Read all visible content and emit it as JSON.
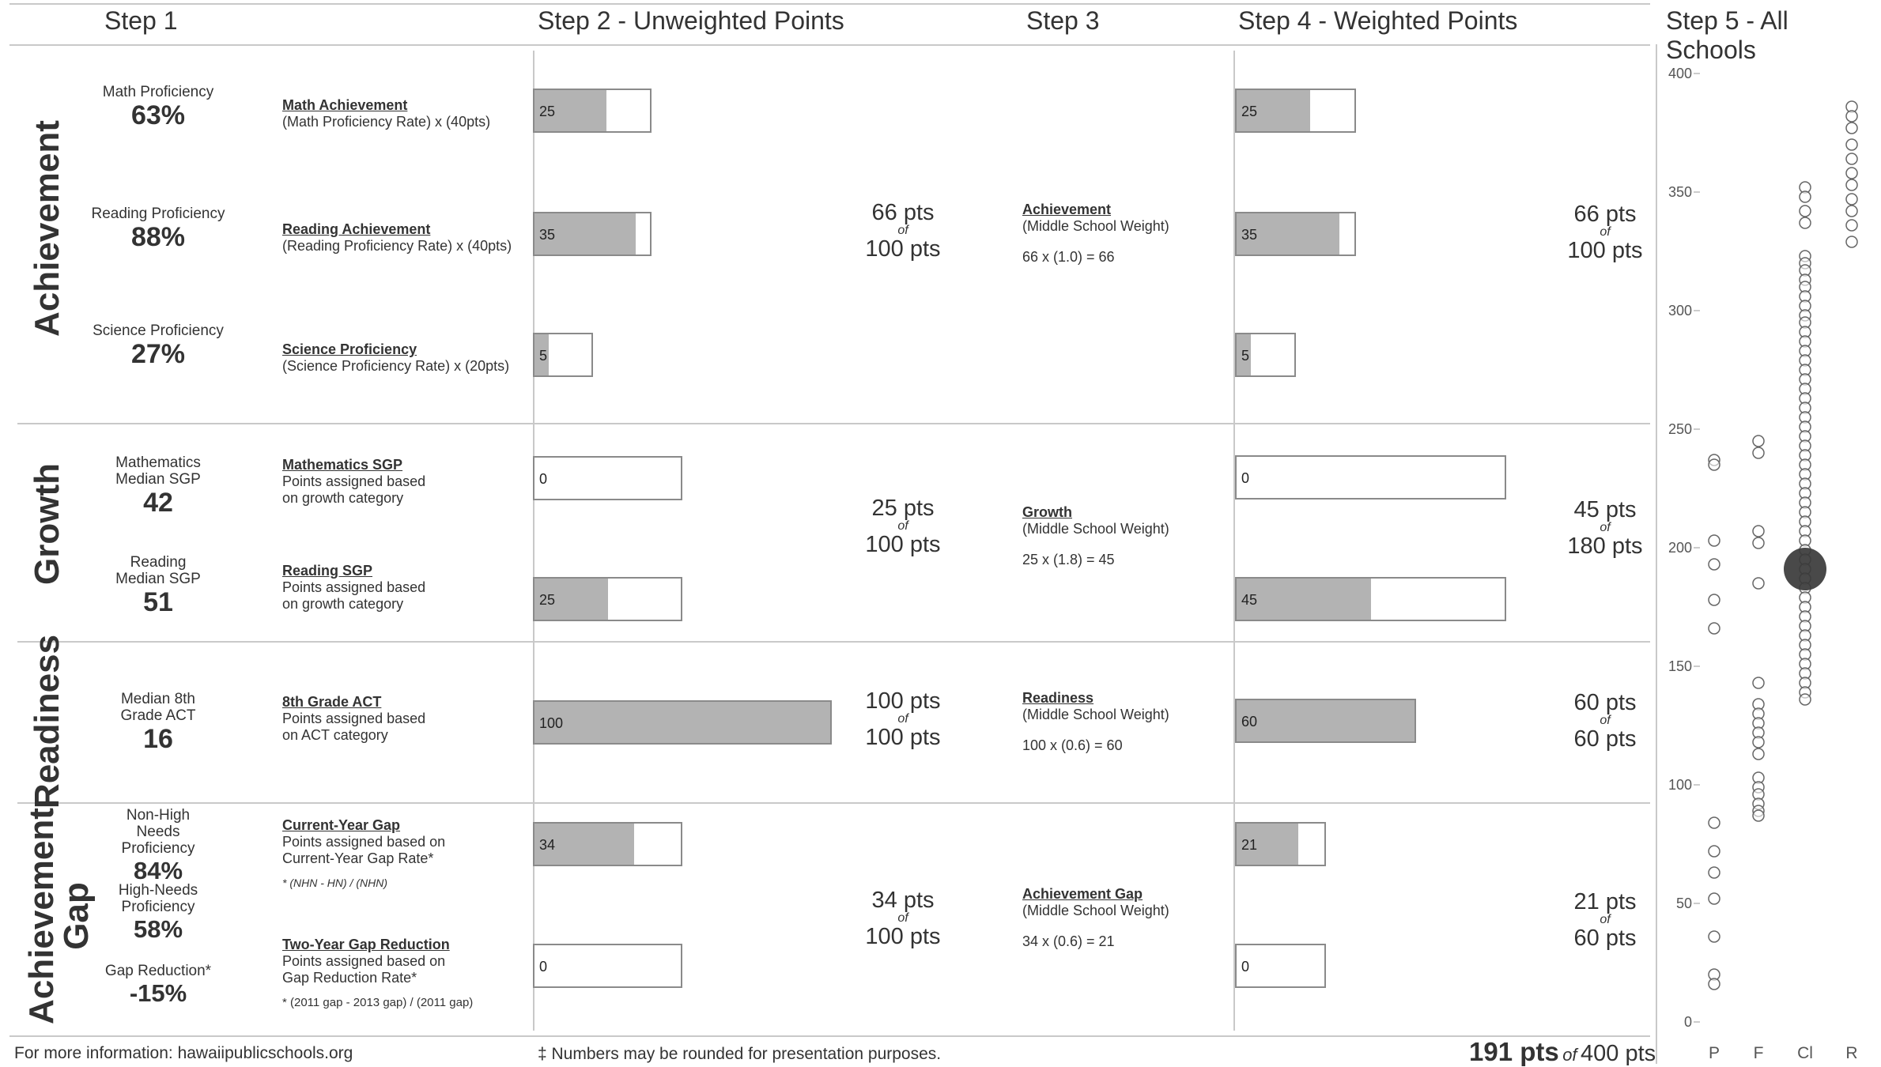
{
  "headers": {
    "step1": "Step 1",
    "step2": "Step 2 - Unweighted Points",
    "step3": "Step 3",
    "step4": "Step 4 - Weighted Points",
    "step5": "Step 5 - All Schools"
  },
  "sections": {
    "achievement": "Achievement",
    "growth": "Growth",
    "readiness": "Readiness",
    "gap_line1": "Achievement",
    "gap_line2": "Gap"
  },
  "metrics": [
    {
      "label": "Math Proficiency",
      "value": "63%"
    },
    {
      "label": "Reading Proficiency",
      "value": "88%"
    },
    {
      "label": "Science Proficiency",
      "value": "27%"
    },
    {
      "label": "Mathematics Median SGP",
      "value": "42"
    },
    {
      "label": "Reading Median SGP",
      "value": "51"
    },
    {
      "label": "Median 8th Grade ACT",
      "value": "16"
    },
    {
      "label": "Non-High Needs Proficiency",
      "value": "84%"
    },
    {
      "label": "High-Needs Proficiency",
      "value": "58%"
    },
    {
      "label": "Gap Reduction*",
      "value": "-15%"
    }
  ],
  "formulas": [
    {
      "title": "Math Achievement",
      "desc": "(Math Proficiency Rate) x (40pts)"
    },
    {
      "title": "Reading Achievement",
      "desc": "(Reading Proficiency Rate) x (40pts)"
    },
    {
      "title": "Science Proficiency",
      "desc": "(Science Proficiency Rate) x (20pts)"
    },
    {
      "title": "Mathematics SGP",
      "desc": "Points assigned based on growth category"
    },
    {
      "title": "Reading SGP",
      "desc": "Points assigned based on growth category"
    },
    {
      "title": "8th Grade ACT",
      "desc": "Points assigned based on ACT category"
    },
    {
      "title": "Current-Year Gap",
      "desc": "Points assigned based on Current-Year Gap Rate*",
      "note": "* (NHN - HN) / (NHN)"
    },
    {
      "title": "Two-Year Gap Reduction",
      "desc": "Points assigned based on Gap Reduction Rate*",
      "note": "* (2011 gap - 2013 gap) / (2011 gap)"
    }
  ],
  "unweighted_bars": [
    {
      "value": "25",
      "fill": 0.625
    },
    {
      "value": "35",
      "fill": 0.875
    },
    {
      "value": "5",
      "fill": 0.25
    },
    {
      "value": "0",
      "fill": 0
    },
    {
      "value": "25",
      "fill": 0.5
    },
    {
      "value": "100",
      "fill": 1.0
    },
    {
      "value": "34",
      "fill": 0.68
    },
    {
      "value": "0",
      "fill": 0
    }
  ],
  "unweighted_totals": [
    {
      "pts": "66 pts",
      "of": "of",
      "max": "100 pts"
    },
    {
      "pts": "25 pts",
      "of": "of",
      "max": "100 pts"
    },
    {
      "pts": "100 pts",
      "of": "of",
      "max": "100 pts"
    },
    {
      "pts": "34 pts",
      "of": "of",
      "max": "100 pts"
    }
  ],
  "weights": [
    {
      "title": "Achievement",
      "desc": "(Middle School Weight)",
      "calc": "66 x (1.0) = 66"
    },
    {
      "title": "Growth",
      "desc": "(Middle School Weight)",
      "calc": "25 x (1.8) = 45"
    },
    {
      "title": "Readiness",
      "desc": "(Middle School Weight)",
      "calc": "100 x (0.6) = 60"
    },
    {
      "title": "Achievement Gap",
      "desc": "(Middle School Weight)",
      "calc": "34 x (0.6) = 21"
    }
  ],
  "weighted_bars": [
    {
      "value": "25",
      "fill": 0.625
    },
    {
      "value": "35",
      "fill": 0.875
    },
    {
      "value": "5",
      "fill": 0.25
    },
    {
      "value": "0",
      "fill": 0
    },
    {
      "value": "45",
      "fill": 0.5
    },
    {
      "value": "60",
      "fill": 1.0
    },
    {
      "value": "21",
      "fill": 0.7
    },
    {
      "value": "0",
      "fill": 0
    }
  ],
  "weighted_totals": [
    {
      "pts": "66 pts",
      "of": "of",
      "max": "100 pts"
    },
    {
      "pts": "45 pts",
      "of": "of",
      "max": "180 pts"
    },
    {
      "pts": "60 pts",
      "of": "of",
      "max": "60 pts"
    },
    {
      "pts": "21 pts",
      "of": "of",
      "max": "60 pts"
    }
  ],
  "footer": {
    "info": "For more information: hawaiipublicschools.org",
    "note": "‡ Numbers may be rounded for presentation purposes.",
    "total": "191 pts",
    "of": "of",
    "total_max": "400 pts"
  },
  "chart_data": {
    "type": "scatter",
    "title": "Step 5 - All Schools",
    "categories": [
      "P",
      "F",
      "Cl",
      "R"
    ],
    "ylim": [
      0,
      400
    ],
    "yticks": [
      0,
      50,
      100,
      150,
      200,
      250,
      300,
      350,
      400
    ],
    "highlight": {
      "category": "Cl",
      "value": 191
    },
    "series": [
      {
        "category": "P",
        "values": [
          237,
          235,
          203,
          193,
          178,
          166,
          84,
          72,
          63,
          52,
          36,
          20,
          16
        ]
      },
      {
        "category": "F",
        "values": [
          245,
          240,
          207,
          202,
          185,
          143,
          134,
          130,
          126,
          122,
          118,
          113,
          103,
          99,
          96,
          92,
          89,
          87
        ]
      },
      {
        "category": "Cl",
        "values": [
          352,
          348,
          342,
          337,
          323,
          320,
          317,
          313,
          310,
          306,
          302,
          298,
          295,
          291,
          287,
          283,
          279,
          275,
          271,
          267,
          263,
          259,
          255,
          251,
          247,
          243,
          239,
          235,
          231,
          227,
          223,
          219,
          215,
          211,
          207,
          203,
          199,
          195,
          191,
          187,
          183,
          179,
          175,
          171,
          167,
          163,
          159,
          155,
          151,
          147,
          143,
          139,
          136
        ]
      },
      {
        "category": "R",
        "values": [
          386,
          382,
          377,
          370,
          364,
          358,
          353,
          347,
          342,
          336,
          329
        ]
      }
    ]
  }
}
